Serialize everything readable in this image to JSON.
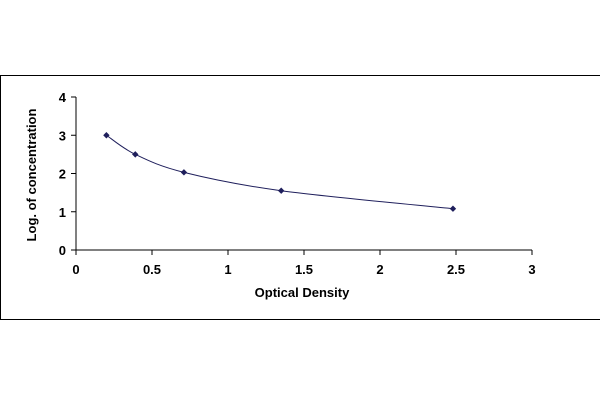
{
  "chart_data": {
    "type": "scatter",
    "title": "",
    "xlabel": "Optical Density",
    "ylabel": "Log. of concentration",
    "xlim": [
      0,
      3
    ],
    "ylim": [
      0,
      4
    ],
    "x_ticks": [
      "0",
      "0.5",
      "1",
      "1.5",
      "2",
      "2.5",
      "3"
    ],
    "y_ticks": [
      "0",
      "1",
      "2",
      "3",
      "4"
    ],
    "grid": false,
    "legend": "none",
    "trendline": "smooth",
    "series": [
      {
        "x": [
          0.2,
          0.39,
          0.71,
          1.35,
          2.48
        ],
        "y": [
          3.0,
          2.5,
          2.03,
          1.55,
          1.08
        ]
      }
    ],
    "colors": {
      "marker": "#1f1f5c",
      "line": "#1f1f5c",
      "axis": "#000000",
      "frame": "#000000"
    }
  }
}
